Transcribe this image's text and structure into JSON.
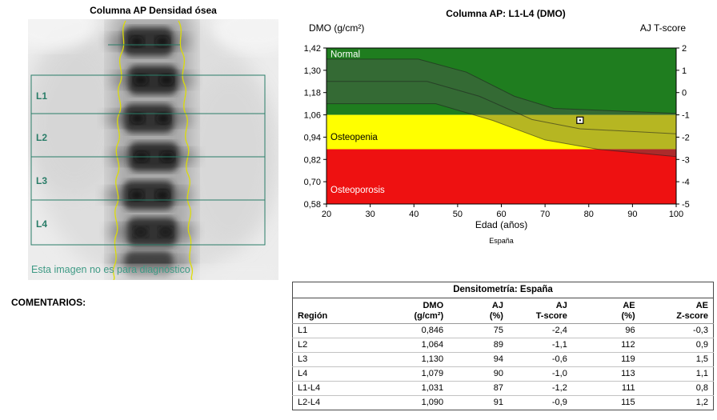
{
  "scan": {
    "title": "Columna AP Densidad ósea",
    "regions": [
      "L1",
      "L2",
      "L3",
      "L4"
    ],
    "disclaimer": "Esta imagen no es para diagnóstico",
    "comments_label": "COMENTARIOS:",
    "roi_color": "#2a7d68",
    "contour_color": "#dede00"
  },
  "chart_data": {
    "type": "line",
    "title": "Columna AP: L1-L4 (DMO)",
    "ylabel_left": "DMO (g/cm²)",
    "ylabel_right": "AJ T-score",
    "xlabel": "Edad (años)",
    "source": "España",
    "xlim": [
      20,
      100
    ],
    "ylim": [
      0.58,
      1.42
    ],
    "tscore_lim": [
      -5,
      2
    ],
    "x_ticks": [
      20,
      30,
      40,
      50,
      60,
      70,
      80,
      90,
      100
    ],
    "y_ticks_left": [
      "1,42",
      "1,30",
      "1,18",
      "1,06",
      "0,94",
      "0,82",
      "0,70",
      "0,58"
    ],
    "y_ticks_right": [
      "2",
      "1",
      "0",
      "-1",
      "-2",
      "-3",
      "-4",
      "-5"
    ],
    "zones": [
      {
        "label": "Normal",
        "from": 1.06,
        "to": 1.42,
        "color": "#1f7d1f",
        "label_color": "#ffffff",
        "label_at": 1.37
      },
      {
        "label": "Osteopenia",
        "from": 0.875,
        "to": 1.06,
        "color": "#ffff00",
        "label_color": "#000000",
        "label_at": 0.925
      },
      {
        "label": "Osteoporosis",
        "from": 0.58,
        "to": 0.875,
        "color": "#ee1111",
        "label_color": "#ffffff",
        "label_at": 0.64
      }
    ],
    "reference_band": {
      "overlay_color": "rgba(80,80,80,0.42)",
      "upper": [
        [
          20,
          1.36
        ],
        [
          41,
          1.36
        ],
        [
          52,
          1.29
        ],
        [
          63,
          1.16
        ],
        [
          72,
          1.095
        ],
        [
          100,
          1.068
        ]
      ],
      "mid": [
        [
          20,
          1.24
        ],
        [
          43,
          1.24
        ],
        [
          55,
          1.16
        ],
        [
          67,
          1.035
        ],
        [
          78,
          0.985
        ],
        [
          100,
          0.958
        ]
      ],
      "lower": [
        [
          20,
          1.12
        ],
        [
          45,
          1.12
        ],
        [
          58,
          1.03
        ],
        [
          70,
          0.925
        ],
        [
          82,
          0.875
        ],
        [
          100,
          0.835
        ]
      ]
    },
    "patient_point": {
      "age": 78,
      "dmo": 1.031,
      "marker": "square"
    }
  },
  "table": {
    "title": "Densitometría: España",
    "columns": [
      {
        "line1": "",
        "line2": "Región"
      },
      {
        "line1": "DMO",
        "line2": "(g/cm²)"
      },
      {
        "line1": "AJ",
        "line2": "(%)"
      },
      {
        "line1": "AJ",
        "line2": "T-score"
      },
      {
        "line1": "AE",
        "line2": "(%)"
      },
      {
        "line1": "AE",
        "line2": "Z-score"
      }
    ],
    "rows": [
      [
        "L1",
        "0,846",
        "75",
        "-2,4",
        "96",
        "-0,3"
      ],
      [
        "L2",
        "1,064",
        "89",
        "-1,1",
        "112",
        "0,9"
      ],
      [
        "L3",
        "1,130",
        "94",
        "-0,6",
        "119",
        "1,5"
      ],
      [
        "L4",
        "1,079",
        "90",
        "-1,0",
        "113",
        "1,1"
      ],
      [
        "L1-L4",
        "1,031",
        "87",
        "-1,2",
        "111",
        "0,8"
      ],
      [
        "L2-L4",
        "1,090",
        "91",
        "-0,9",
        "115",
        "1,2"
      ]
    ]
  }
}
